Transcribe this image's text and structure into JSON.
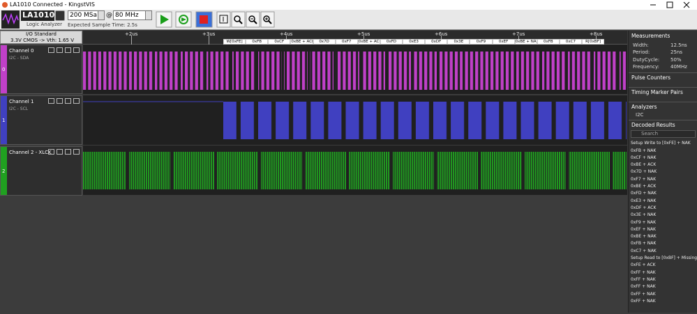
{
  "window": {
    "title": "LA1010 Connected - KingstVIS"
  },
  "toolbar": {
    "device": "LA1010",
    "device_subtitle": "Logic Analyzer",
    "sample_rate": "200 MSa",
    "at": "@",
    "frequency": "80 MHz",
    "expected_time": "Expected Sample Time: 2.5s"
  },
  "io": {
    "title": "I/O Standard",
    "standard": "3.3V CMOS -> Vth: 1.65 V"
  },
  "channels": [
    {
      "name": "Channel 0",
      "sub": "I2C - SDA",
      "index": "0"
    },
    {
      "name": "Channel 1",
      "sub": "I2C - SCL",
      "index": "1"
    },
    {
      "name": "Channel 2 - XLCK",
      "index": "2"
    }
  ],
  "ruler": [
    "+2us",
    "+3us",
    "+4us",
    "+5us",
    "+6us",
    "+7us",
    "+8us"
  ],
  "decode_labels": [
    "W[0xFE]",
    "0xFB",
    "0xCF",
    "0xBE + ACK",
    "0x7D",
    "0xF7",
    "0xBE + ACK",
    "0xFD",
    "0xE3",
    "0xDF",
    "0x3E",
    "0xF9",
    "0xEF",
    "0xBE + NAK",
    "0xFB",
    "0xC7",
    "R[0xBF]"
  ],
  "panel": {
    "measurements": {
      "title": "Measurements",
      "rows": [
        [
          "Width:",
          "12.5ns"
        ],
        [
          "Period:",
          "25ns"
        ],
        [
          "DutyCycle:",
          "50%"
        ],
        [
          "Frequency:",
          "40MHz"
        ]
      ]
    },
    "pulse_counters": "Pulse Counters",
    "timing_marker_pairs": "Timing Marker Pairs",
    "analyzers": {
      "title": "Analyzers",
      "items": [
        "I2C"
      ]
    },
    "decoded_results": {
      "title": "Decoded Results",
      "search": "Search",
      "items": [
        "Setup Write to [0xFE] + NAK",
        "0xFB + NAK",
        "0xCF + NAK",
        "0xBE + ACK",
        "0x7D + NAK",
        "0xF7 + NAK",
        "0xBE + ACK",
        "0xFD + NAK",
        "0xE3 + NAK",
        "0xDF + ACK",
        "0x3E + NAK",
        "0xF9 + NAK",
        "0xEF + NAK",
        "0xBE + NAK",
        "0xFB + NAK",
        "0xC7 + NAK",
        "Setup Read to [0xBF] + Missing ACK",
        "0xFE + ACK",
        "0xFF + NAK",
        "0xFF + NAK",
        "0xFF + NAK",
        "0xFF + NAK",
        "0xFF + NAK"
      ]
    }
  }
}
